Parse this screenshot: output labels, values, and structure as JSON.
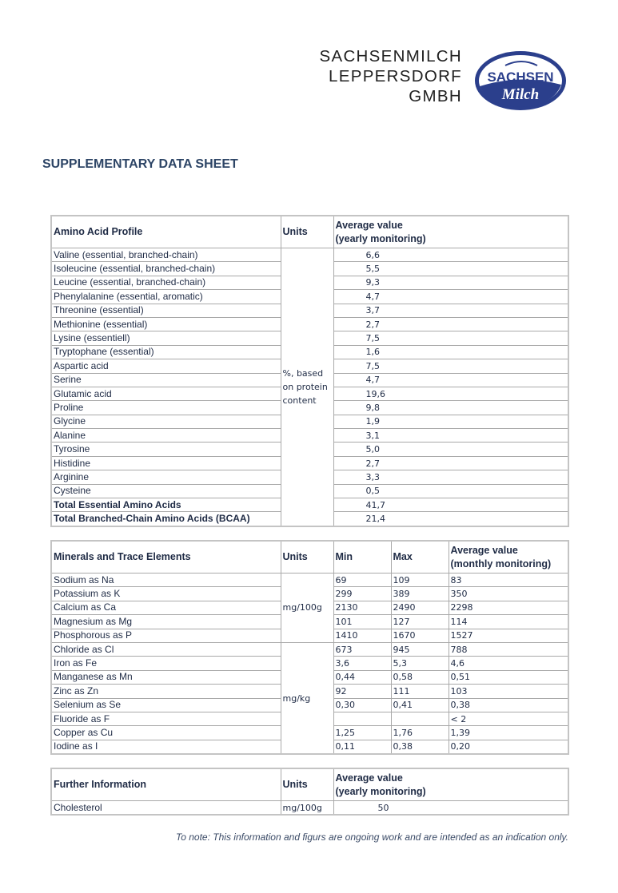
{
  "header": {
    "company_lines": [
      "SACHSENMILCH",
      "LEPPERSDORF",
      "GMBH"
    ],
    "logo_text": [
      "SACHSEN",
      "Milch"
    ],
    "brand_color": "#2b3f8c"
  },
  "title": "SUPPLEMENTARY DATA SHEET",
  "amino": {
    "headers": [
      "Amino Acid Profile",
      "Units",
      "Average value\n(yearly monitoring)"
    ],
    "units": "%, based on protein content",
    "rows": [
      {
        "name": "Valine (essential, branched-chain)",
        "value": "6,6"
      },
      {
        "name": "Isoleucine (essential, branched-chain)",
        "value": "5,5"
      },
      {
        "name": "Leucine (essential, branched-chain)",
        "value": "9,3"
      },
      {
        "name": "Phenylalanine (essential, aromatic)",
        "value": "4,7"
      },
      {
        "name": "Threonine (essential)",
        "value": "3,7"
      },
      {
        "name": "Methionine (essential)",
        "value": "2,7"
      },
      {
        "name": "Lysine (essentiell)",
        "value": "7,5"
      },
      {
        "name": "Tryptophane (essential)",
        "value": "1,6"
      },
      {
        "name": "Aspartic acid",
        "value": "7,5"
      },
      {
        "name": "Serine",
        "value": "4,7"
      },
      {
        "name": "Glutamic acid",
        "value": "19,6"
      },
      {
        "name": "Proline",
        "value": "9,8"
      },
      {
        "name": "Glycine",
        "value": "1,9"
      },
      {
        "name": "Alanine",
        "value": "3,1"
      },
      {
        "name": "Tyrosine",
        "value": "5,0"
      },
      {
        "name": "Histidine",
        "value": "2,7"
      },
      {
        "name": "Arginine",
        "value": "3,3"
      },
      {
        "name": "Cysteine",
        "value": "0,5"
      },
      {
        "name": "Total Essential  Amino Acids",
        "value": "41,7",
        "bold": true
      },
      {
        "name": "Total Branched-Chain Amino Acids  (BCAA)",
        "value": "21,4",
        "bold": true
      }
    ]
  },
  "minerals": {
    "headers": [
      "Minerals and Trace Elements",
      "Units",
      "Min",
      "Max",
      "Average value\n(monthly monitoring)"
    ],
    "unit_groups": [
      {
        "label": "mg/100g",
        "span": 5
      },
      {
        "label": "mg/kg",
        "span": 8
      }
    ],
    "rows": [
      {
        "name": "Sodium as Na",
        "min": "69",
        "max": "109",
        "avg": "83"
      },
      {
        "name": "Potassium as K",
        "min": "299",
        "max": "389",
        "avg": "350"
      },
      {
        "name": "Calcium as Ca",
        "min": "2130",
        "max": "2490",
        "avg": "2298"
      },
      {
        "name": "Magnesium as Mg",
        "min": "101",
        "max": "127",
        "avg": "114"
      },
      {
        "name": "Phosphorous as P",
        "min": "1410",
        "max": "1670",
        "avg": "1527"
      },
      {
        "name": "Chloride as Cl",
        "min": "673",
        "max": "945",
        "avg": "788"
      },
      {
        "name": "Iron as Fe",
        "min": "3,6",
        "max": "5,3",
        "avg": "4,6"
      },
      {
        "name": "Manganese as Mn",
        "min": "0,44",
        "max": "0,58",
        "avg": "0,51"
      },
      {
        "name": "Zinc as Zn",
        "min": "92",
        "max": "111",
        "avg": "103"
      },
      {
        "name": "Selenium as Se",
        "min": "0,30",
        "max": "0,41",
        "avg": "0,38"
      },
      {
        "name": "Fluoride as F",
        "min": "",
        "max": "",
        "avg": "< 2"
      },
      {
        "name": "Copper as Cu",
        "min": "1,25",
        "max": "1,76",
        "avg": "1,39"
      },
      {
        "name": "Iodine as I",
        "min": "0,11",
        "max": "0,38",
        "avg": "0,20"
      }
    ]
  },
  "further": {
    "headers": [
      "Further Information",
      "Units",
      "Average value\n(yearly monitoring)"
    ],
    "rows": [
      {
        "name": "Cholesterol",
        "unit": "mg/100g",
        "value": "50"
      }
    ]
  },
  "note": "To note: This information and figurs are ongoing work and are intended as an indication only."
}
